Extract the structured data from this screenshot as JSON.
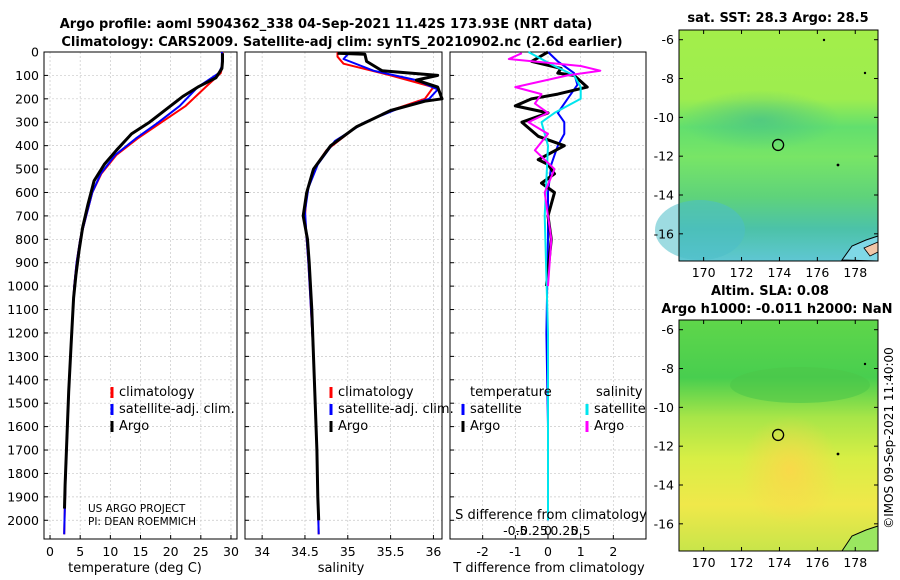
{
  "title": {
    "line1": "Argo profile: aoml 5904362_338 04-Sep-2021 11.42S 173.93E (NRT data)",
    "line2": "Climatology: CARS2009. Satellite-adj clim: synTS_20210902.nc (2.6d earlier)"
  },
  "credit": {
    "line1": "US ARGO PROJECT",
    "line2": "PI: DEAN ROEMMICH"
  },
  "side_label": "©IMOS 09-Sep-2021 11:40:00",
  "colors": {
    "climatology": "#ff0000",
    "satellite": "#0000ff",
    "argo": "#000000",
    "s_satellite": "#00e5ee",
    "s_argo": "#ff00ff"
  },
  "chart_data": [
    {
      "type": "line",
      "name": "temperature-profile",
      "xlabel": "temperature (deg C)",
      "ylabel": "",
      "xlim": [
        -1,
        31
      ],
      "ylim": [
        2080,
        0
      ],
      "xticks": [
        0,
        5,
        10,
        15,
        20,
        25,
        30
      ],
      "yticks": [
        0,
        100,
        200,
        300,
        400,
        500,
        600,
        700,
        800,
        900,
        1000,
        1100,
        1200,
        1300,
        1400,
        1500,
        1600,
        1700,
        1800,
        1900,
        2000
      ],
      "legend": [
        "climatology",
        "satellite-adj. clim.",
        "Argo"
      ],
      "series": [
        {
          "name": "climatology",
          "points": [
            [
              28.6,
              0
            ],
            [
              28.6,
              60
            ],
            [
              28.3,
              90
            ],
            [
              25.8,
              150
            ],
            [
              22.5,
              230
            ],
            [
              18.5,
              300
            ],
            [
              14.5,
              370
            ],
            [
              11.0,
              440
            ],
            [
              8.5,
              520
            ],
            [
              7.0,
              600
            ],
            [
              6.0,
              700
            ],
            [
              5.0,
              800
            ],
            [
              4.4,
              900
            ],
            [
              4.0,
              1000
            ],
            [
              3.6,
              1200
            ],
            [
              3.2,
              1400
            ],
            [
              2.9,
              1600
            ],
            [
              2.6,
              1800
            ],
            [
              2.4,
              2000
            ],
            [
              2.35,
              2060
            ]
          ]
        },
        {
          "name": "satellite-adj. clim.",
          "points": [
            [
              28.5,
              0
            ],
            [
              28.5,
              60
            ],
            [
              28.0,
              90
            ],
            [
              24.5,
              150
            ],
            [
              21.5,
              230
            ],
            [
              18.0,
              300
            ],
            [
              14.2,
              370
            ],
            [
              10.8,
              440
            ],
            [
              8.4,
              520
            ],
            [
              7.0,
              600
            ],
            [
              6.0,
              700
            ],
            [
              5.0,
              800
            ],
            [
              4.4,
              900
            ],
            [
              4.0,
              1000
            ],
            [
              3.6,
              1200
            ],
            [
              3.2,
              1400
            ],
            [
              2.9,
              1600
            ],
            [
              2.6,
              1800
            ],
            [
              2.4,
              2000
            ],
            [
              2.35,
              2060
            ]
          ]
        },
        {
          "name": "Argo",
          "points": [
            [
              28.6,
              5
            ],
            [
              28.6,
              40
            ],
            [
              28.5,
              70
            ],
            [
              27.5,
              110
            ],
            [
              24.5,
              150
            ],
            [
              22.0,
              190
            ],
            [
              21.0,
              210
            ],
            [
              19.5,
              240
            ],
            [
              16.5,
              300
            ],
            [
              13.5,
              350
            ],
            [
              11.0,
              420
            ],
            [
              9.0,
              480
            ],
            [
              7.3,
              550
            ],
            [
              6.3,
              650
            ],
            [
              5.4,
              750
            ],
            [
              4.8,
              850
            ],
            [
              4.3,
              950
            ],
            [
              3.9,
              1050
            ],
            [
              3.5,
              1250
            ],
            [
              3.1,
              1450
            ],
            [
              2.8,
              1650
            ],
            [
              2.5,
              1850
            ],
            [
              2.4,
              1950
            ]
          ]
        }
      ]
    },
    {
      "type": "line",
      "name": "salinity-profile",
      "xlabel": "salinity",
      "ylabel": "",
      "xlim": [
        33.8,
        36.1
      ],
      "ylim": [
        2080,
        0
      ],
      "xticks": [
        34,
        34.5,
        35,
        35.5,
        36
      ],
      "legend": [
        "climatology",
        "satellite-adj. clim.",
        "Argo"
      ],
      "series": [
        {
          "name": "climatology",
          "points": [
            [
              34.88,
              0
            ],
            [
              34.88,
              20
            ],
            [
              34.95,
              50
            ],
            [
              35.5,
              100
            ],
            [
              36.0,
              150
            ],
            [
              35.9,
              200
            ],
            [
              35.5,
              250
            ],
            [
              35.1,
              320
            ],
            [
              34.75,
              420
            ],
            [
              34.6,
              500
            ],
            [
              34.52,
              600
            ],
            [
              34.5,
              700
            ],
            [
              34.52,
              800
            ],
            [
              34.54,
              900
            ],
            [
              34.57,
              1100
            ],
            [
              34.6,
              1300
            ],
            [
              34.62,
              1500
            ],
            [
              34.64,
              1700
            ],
            [
              34.65,
              1900
            ],
            [
              34.66,
              2060
            ]
          ]
        },
        {
          "name": "satellite-adj. clim.",
          "points": [
            [
              35.0,
              0
            ],
            [
              35.0,
              10
            ],
            [
              34.95,
              30
            ],
            [
              35.3,
              80
            ],
            [
              35.8,
              120
            ],
            [
              36.05,
              160
            ],
            [
              35.95,
              200
            ],
            [
              35.6,
              240
            ],
            [
              35.2,
              300
            ],
            [
              34.85,
              380
            ],
            [
              34.65,
              480
            ],
            [
              34.54,
              580
            ],
            [
              34.5,
              680
            ],
            [
              34.52,
              800
            ],
            [
              34.54,
              900
            ],
            [
              34.57,
              1100
            ],
            [
              34.6,
              1300
            ],
            [
              34.62,
              1500
            ],
            [
              34.64,
              1700
            ],
            [
              34.65,
              1900
            ],
            [
              34.66,
              2060
            ]
          ]
        },
        {
          "name": "Argo",
          "points": [
            [
              34.88,
              5
            ],
            [
              35.2,
              10
            ],
            [
              35.22,
              40
            ],
            [
              35.4,
              80
            ],
            [
              36.05,
              100
            ],
            [
              35.8,
              120
            ],
            [
              36.05,
              150
            ],
            [
              36.1,
              200
            ],
            [
              35.9,
              210
            ],
            [
              35.5,
              250
            ],
            [
              35.1,
              320
            ],
            [
              34.8,
              400
            ],
            [
              34.6,
              500
            ],
            [
              34.52,
              600
            ],
            [
              34.48,
              700
            ],
            [
              34.53,
              800
            ],
            [
              34.55,
              900
            ],
            [
              34.58,
              1100
            ],
            [
              34.6,
              1300
            ],
            [
              34.62,
              1500
            ],
            [
              34.64,
              1700
            ],
            [
              34.65,
              1900
            ],
            [
              34.66,
              2000
            ]
          ]
        }
      ]
    },
    {
      "type": "line",
      "name": "difference-profile",
      "xlabel": "T difference from climatology",
      "xlabel_top": "S difference from climatology",
      "xlim": [
        -3,
        3
      ],
      "ylim": [
        2080,
        0
      ],
      "xticks": [
        -2,
        -1,
        0,
        1,
        2
      ],
      "xticks_top": [
        "-0.5",
        "-0.25",
        "0",
        "0.25",
        "0.5"
      ],
      "legend_titles": [
        "temperature",
        "salinity"
      ],
      "legend": [
        "satellite",
        "Argo",
        "satellite",
        "Argo"
      ],
      "series": [
        {
          "name": "T satellite",
          "points": [
            [
              0.0,
              0
            ],
            [
              0.3,
              40
            ],
            [
              0.8,
              90
            ],
            [
              0.9,
              140
            ],
            [
              0.6,
              200
            ],
            [
              0.3,
              260
            ],
            [
              0.5,
              300
            ],
            [
              0.5,
              350
            ],
            [
              0.3,
              400
            ],
            [
              0.1,
              480
            ],
            [
              0.0,
              600
            ],
            [
              0.0,
              800
            ],
            [
              -0.05,
              1200
            ],
            [
              0.0,
              1600
            ],
            [
              0.0,
              2000
            ]
          ]
        },
        {
          "name": "T Argo",
          "points": [
            [
              0.0,
              0
            ],
            [
              -0.5,
              40
            ],
            [
              0.4,
              70
            ],
            [
              0.3,
              90
            ],
            [
              0.8,
              100
            ],
            [
              1.2,
              150
            ],
            [
              0.3,
              180
            ],
            [
              -0.5,
              200
            ],
            [
              -1.0,
              230
            ],
            [
              0.0,
              260
            ],
            [
              -0.8,
              300
            ],
            [
              -0.3,
              360
            ],
            [
              0.5,
              400
            ],
            [
              -0.3,
              460
            ],
            [
              0.0,
              480
            ],
            [
              0.2,
              520
            ],
            [
              -0.2,
              560
            ],
            [
              0.2,
              600
            ],
            [
              0.0,
              700
            ],
            [
              0.1,
              800
            ],
            [
              -0.05,
              1000
            ]
          ]
        },
        {
          "name": "S satellite",
          "points": [
            [
              -0.3,
              0
            ],
            [
              0.1,
              60
            ],
            [
              0.4,
              100
            ],
            [
              0.5,
              150
            ],
            [
              0.5,
              200
            ],
            [
              0.1,
              260
            ],
            [
              -0.1,
              300
            ],
            [
              0.0,
              400
            ],
            [
              -0.05,
              700
            ],
            [
              0.0,
              1200
            ],
            [
              0.0,
              2000
            ]
          ]
        },
        {
          "name": "S Argo",
          "points": [
            [
              -0.4,
              5
            ],
            [
              -0.6,
              30
            ],
            [
              0.5,
              60
            ],
            [
              0.8,
              80
            ],
            [
              0.3,
              100
            ],
            [
              -0.5,
              150
            ],
            [
              -0.1,
              180
            ],
            [
              -0.2,
              220
            ],
            [
              0.0,
              260
            ],
            [
              -0.3,
              300
            ],
            [
              0.0,
              350
            ],
            [
              -0.2,
              420
            ],
            [
              0.1,
              500
            ],
            [
              -0.05,
              600
            ],
            [
              0.0,
              700
            ],
            [
              0.05,
              800
            ],
            [
              0.0,
              1000
            ]
          ]
        }
      ]
    },
    {
      "type": "heatmap",
      "name": "sst-map",
      "title": "sat. SST: 28.3 Argo: 28.5",
      "xlim": [
        168.7,
        179.2
      ],
      "ylim": [
        -17.4,
        -5.5
      ],
      "xticks": [
        170,
        172,
        174,
        176,
        178
      ],
      "yticks": [
        -6,
        -8,
        -10,
        -12,
        -14,
        -16
      ],
      "marker": [
        173.93,
        -11.42
      ]
    },
    {
      "type": "heatmap",
      "name": "sla-map",
      "title": "Altim. SLA: 0.08",
      "subtitle": "Argo h1000: -0.011 h2000: NaN",
      "xlim": [
        168.7,
        179.2
      ],
      "ylim": [
        -17.4,
        -5.5
      ],
      "xticks": [
        170,
        172,
        174,
        176,
        178
      ],
      "yticks": [
        -6,
        -8,
        -10,
        -12,
        -14,
        -16
      ],
      "marker": [
        173.93,
        -11.42
      ]
    }
  ]
}
